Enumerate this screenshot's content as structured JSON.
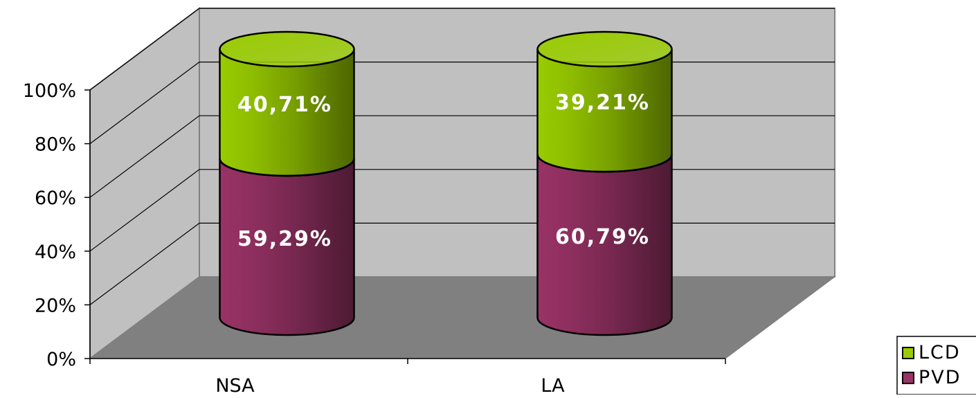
{
  "chart_data": {
    "type": "bar",
    "stacked": true,
    "stack_mode": "percent",
    "shape": "cylinder-3d",
    "categories": [
      "NSA",
      "LA"
    ],
    "series": [
      {
        "name": "PVD",
        "values": [
          59.29,
          60.79
        ],
        "labels": [
          "59,29%",
          "60,79%"
        ],
        "color": "#993366"
      },
      {
        "name": "LCD",
        "values": [
          40.71,
          39.21
        ],
        "labels": [
          "40,71%",
          "39,21%"
        ],
        "color": "#99CC00"
      }
    ],
    "y_ticks": [
      "0%",
      "20%",
      "40%",
      "60%",
      "80%",
      "100%"
    ],
    "ylim": [
      0,
      100
    ],
    "grid": true,
    "legend": {
      "position": "bottom-right",
      "order": [
        "LCD",
        "PVD"
      ]
    },
    "colors": {
      "back_wall": "#C0C0C0",
      "side_wall": "#C0C0C0",
      "floor": "#808080"
    }
  }
}
